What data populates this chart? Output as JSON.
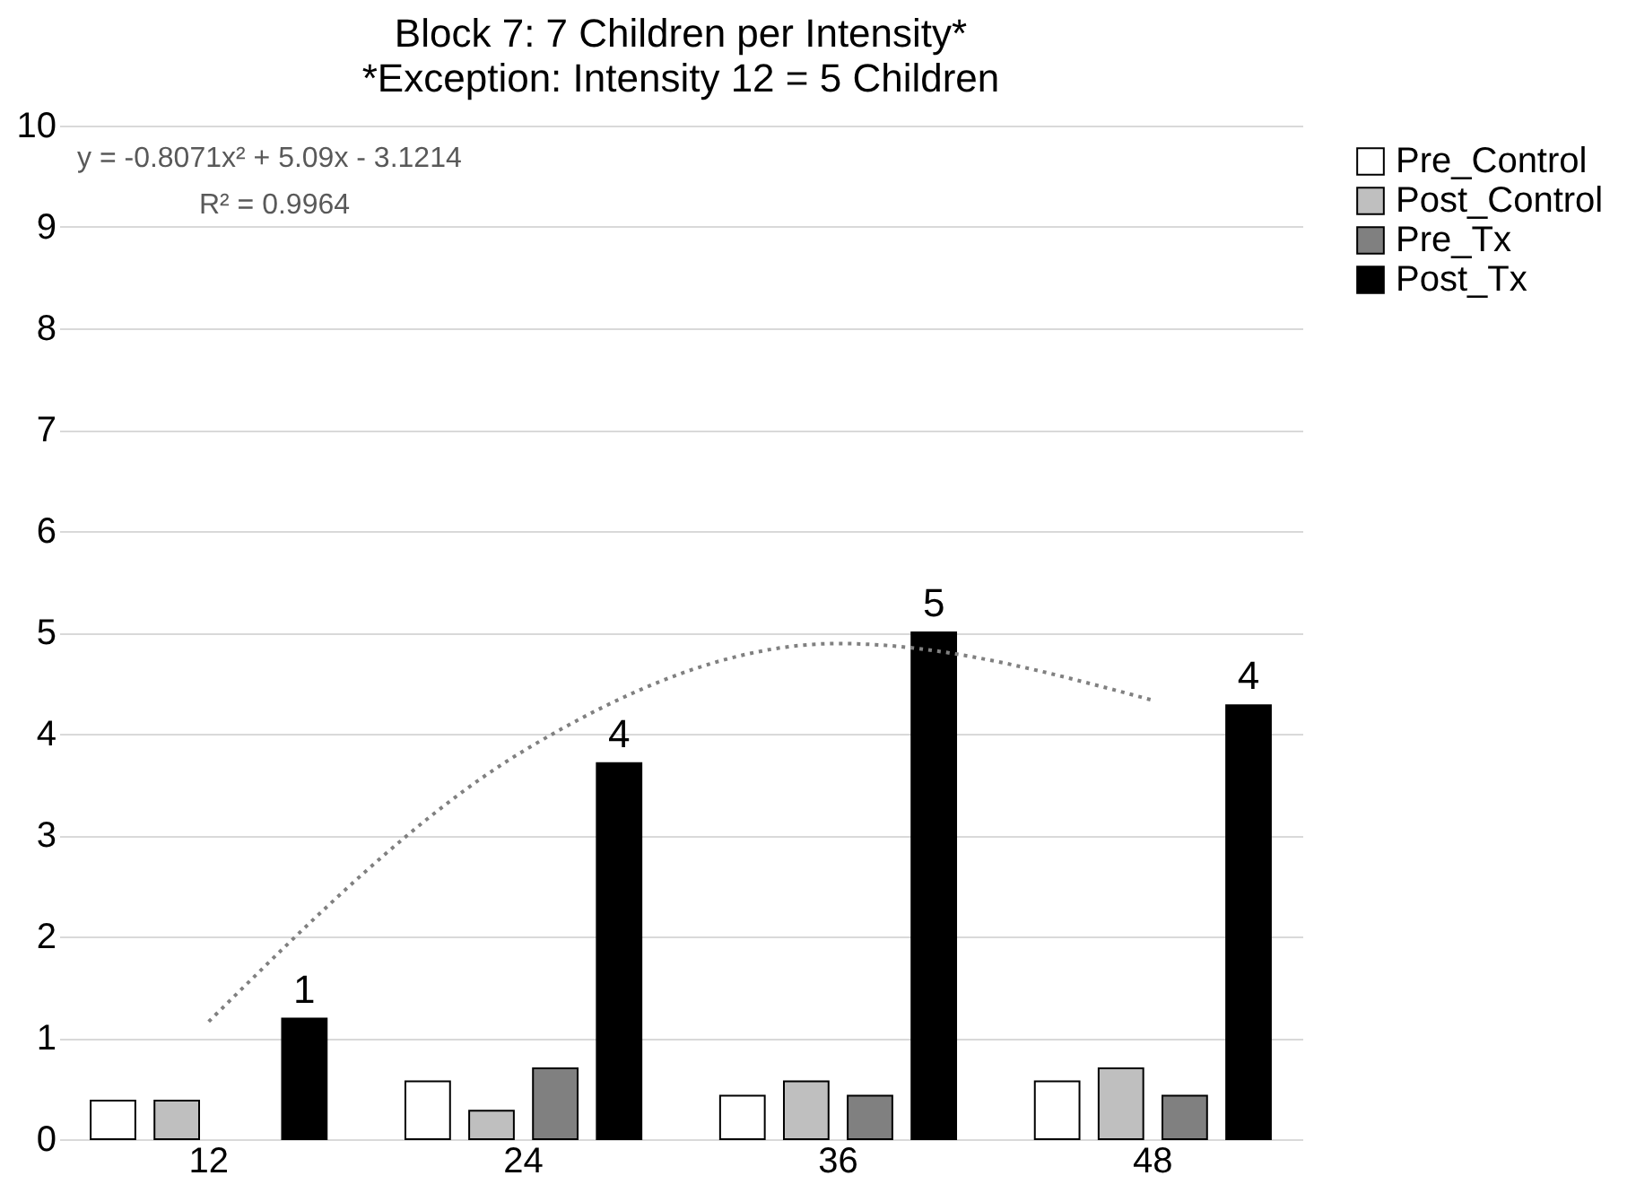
{
  "chart_data": {
    "type": "bar",
    "title": "Block 7: 7 Children per Intensity*",
    "subtitle": "*Exception: Intensity 12 = 5 Children",
    "categories": [
      "12",
      "24",
      "36",
      "48"
    ],
    "series": [
      {
        "name": "Pre_Control",
        "color": "#ffffff",
        "values": [
          0.38,
          0.57,
          0.43,
          0.57
        ]
      },
      {
        "name": "Post_Control",
        "color": "#bfbfbf",
        "values": [
          0.38,
          0.28,
          0.57,
          0.7
        ]
      },
      {
        "name": "Pre_Tx",
        "color": "#808080",
        "values": [
          null,
          0.7,
          0.43,
          0.43
        ]
      },
      {
        "name": "Post_Tx",
        "color": "#000000",
        "values": [
          1.19,
          3.71,
          5.0,
          4.28
        ],
        "value_labels": [
          "1",
          "4",
          "5",
          "4"
        ]
      },
      {
        "type": "line",
        "color": "#808080",
        "line_style": "dotted",
        "marker": "none",
        "values": [
          1.16,
          3.83,
          4.89,
          4.33
        ]
      }
    ],
    "ylim": [
      0,
      10
    ],
    "yticks": [
      0,
      1,
      2,
      3,
      4,
      5,
      6,
      7,
      8,
      9,
      10
    ],
    "grid": "y",
    "legend": "top right",
    "annotations": [
      "y = -0.8071x² + 5.09x - 3.1214",
      "R² = 0.9964"
    ]
  }
}
